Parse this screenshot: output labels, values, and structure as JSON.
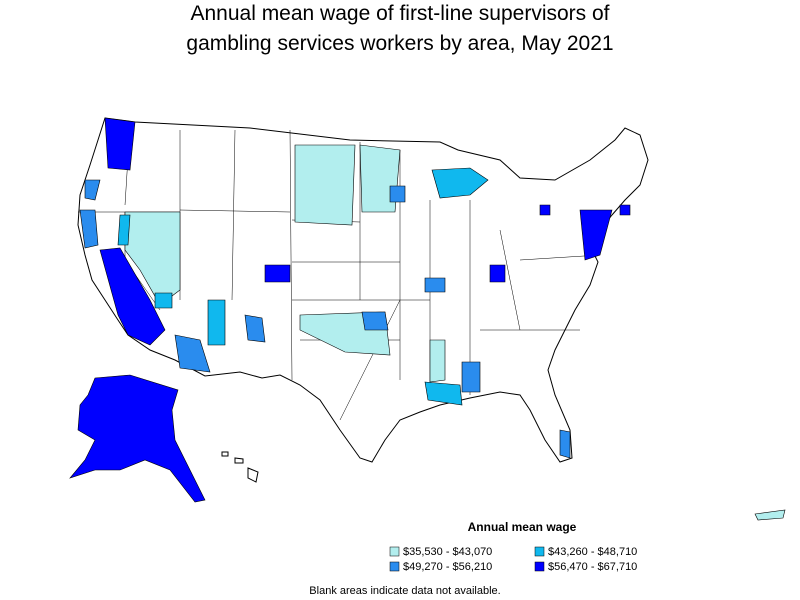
{
  "title_lines": [
    "Annual mean wage of first-line supervisors of",
    "gambling services workers by area, May 2021"
  ],
  "legend": {
    "title": "Annual mean wage",
    "entries": [
      {
        "label": "$35,530 - $43,070",
        "color": "#b2eeee"
      },
      {
        "label": "$43,260 - $48,710",
        "color": "#10b8ee"
      },
      {
        "label": "$49,270 - $56,210",
        "color": "#2a8cee"
      },
      {
        "label": "$56,470 - $67,710",
        "color": "#0000ff"
      }
    ]
  },
  "note": "Blank areas indicate data not available."
}
